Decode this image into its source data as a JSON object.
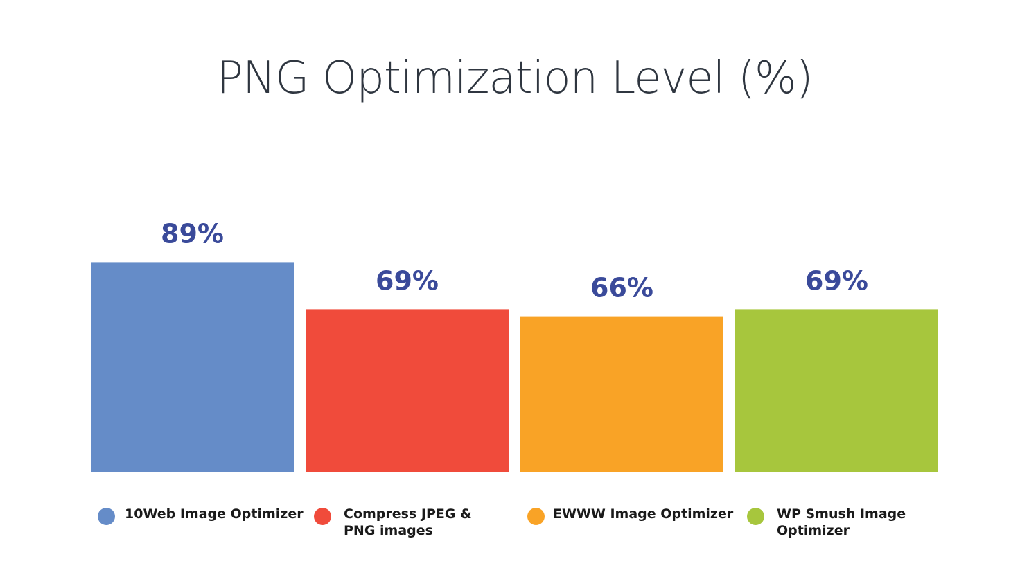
{
  "chart_data": {
    "type": "bar",
    "title": "PNG Optimization Level (%)",
    "categories": [
      "10Web Image Optimizer",
      "Compress JPEG & PNG images",
      "EWWW Image Optimizer",
      "WP Smush Image Optimizer"
    ],
    "values": [
      89,
      69,
      66,
      69
    ],
    "data_labels": [
      "89%",
      "69%",
      "66%",
      "69%"
    ],
    "colors": [
      "#658cc8",
      "#f04b3b",
      "#f9a326",
      "#a7c63d"
    ],
    "data_label_color": "#3a4a9a",
    "ylim": [
      0,
      100
    ],
    "grid": false,
    "legend_position": "bottom",
    "legend": [
      {
        "label": "10Web Image Optimizer",
        "color": "#658cc8"
      },
      {
        "label": "Compress JPEG & PNG images",
        "color": "#f04b3b"
      },
      {
        "label": "EWWW Image Optimizer",
        "color": "#f9a326"
      },
      {
        "label": "WP Smush Image Optimizer",
        "color": "#a7c63d"
      }
    ]
  }
}
